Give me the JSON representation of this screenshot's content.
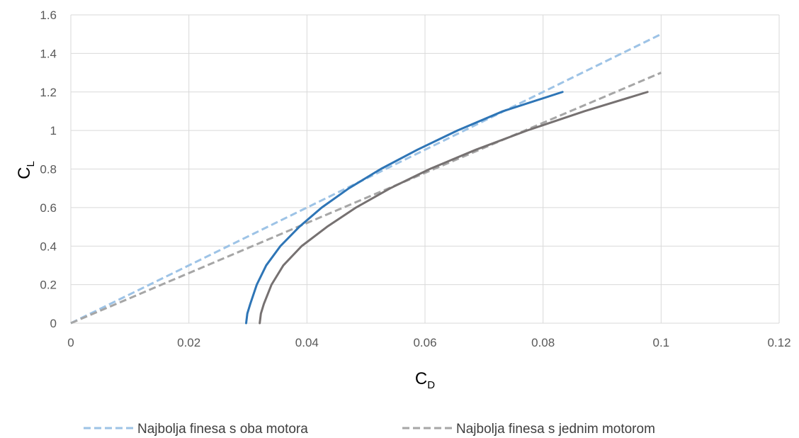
{
  "chart_data": {
    "type": "line",
    "xlabel": {
      "main": "C",
      "sub": "D"
    },
    "ylabel": {
      "main": "C",
      "sub": "L"
    },
    "xlim": [
      0,
      0.12
    ],
    "ylim": [
      0,
      1.6
    ],
    "grid": true,
    "legend_position": "bottom",
    "x_ticks": [
      "0",
      "0.02",
      "0.04",
      "0.06",
      "0.08",
      "0.1",
      "0.12"
    ],
    "y_ticks": [
      "0",
      "0.2",
      "0.4",
      "0.6",
      "0.8",
      "1",
      "1.2",
      "1.4",
      "1.6"
    ],
    "x_tick_values": [
      0,
      0.02,
      0.04,
      0.06,
      0.08,
      0.1,
      0.12
    ],
    "y_tick_values": [
      0,
      0.2,
      0.4,
      0.6,
      0.8,
      1.0,
      1.2,
      1.4,
      1.6
    ],
    "series": [
      {
        "name": "Najbolja finesa s oba motora",
        "color": "#9dc3e6",
        "dashed": true,
        "in_legend": true,
        "x": [
          0,
          0.1
        ],
        "y": [
          0,
          1.5
        ]
      },
      {
        "name": "Najbolja finesa s jednim motorom",
        "color": "#a6a6a6",
        "dashed": true,
        "in_legend": true,
        "x": [
          0,
          0.1
        ],
        "y": [
          0,
          1.3
        ]
      },
      {
        "color": "#2e75b6",
        "dashed": false,
        "in_legend": false,
        "x": [
          0.0297,
          0.0299,
          0.0304,
          0.0315,
          0.0331,
          0.0355,
          0.0387,
          0.0425,
          0.0471,
          0.0525,
          0.0587,
          0.0655,
          0.0732,
          0.0833
        ],
        "y": [
          0,
          0.05,
          0.1,
          0.2,
          0.3,
          0.4,
          0.5,
          0.6,
          0.7,
          0.8,
          0.9,
          1.0,
          1.1,
          1.2
        ]
      },
      {
        "color": "#767171",
        "dashed": false,
        "in_legend": false,
        "x": [
          0.032,
          0.0322,
          0.0327,
          0.034,
          0.036,
          0.0391,
          0.0434,
          0.0483,
          0.0541,
          0.0608,
          0.0686,
          0.0773,
          0.087,
          0.0977
        ],
        "y": [
          0,
          0.05,
          0.1,
          0.2,
          0.3,
          0.4,
          0.5,
          0.6,
          0.7,
          0.8,
          0.9,
          1.0,
          1.1,
          1.2
        ]
      }
    ]
  }
}
